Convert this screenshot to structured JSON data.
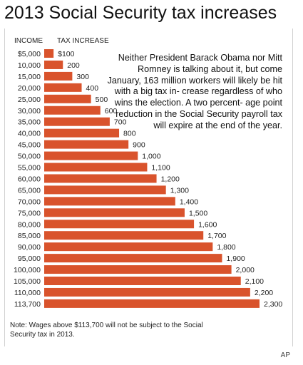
{
  "chart_data": {
    "type": "bar",
    "title": "2013 Social Security tax increases",
    "column_headers": {
      "income": "INCOME",
      "tax_increase": "TAX INCREASE"
    },
    "categories": [
      "$5,000",
      "10,000",
      "15,000",
      "20,000",
      "25,000",
      "30,000",
      "35,000",
      "40,000",
      "45,000",
      "50,000",
      "55,000",
      "60,000",
      "65,000",
      "70,000",
      "75,000",
      "80,000",
      "85,000",
      "90,000",
      "95,000",
      "100,000",
      "105,000",
      "110,000",
      "113,700"
    ],
    "values": [
      100,
      200,
      300,
      400,
      500,
      600,
      700,
      800,
      900,
      1000,
      1100,
      1200,
      1300,
      1400,
      1500,
      1600,
      1700,
      1800,
      1900,
      2000,
      2100,
      2200,
      2300
    ],
    "data_labels": [
      "$100",
      "200",
      "300",
      "400",
      "500",
      "600",
      "700",
      "800",
      "900",
      "1,000",
      "1,100",
      "1,200",
      "1,300",
      "1,400",
      "1,500",
      "1,600",
      "1,700",
      "1,800",
      "1,900",
      "2,000",
      "2,100",
      "2,200",
      "2,300"
    ],
    "orientation": "horizontal",
    "bar_color": "#d9532c",
    "xlim": [
      0,
      2300
    ],
    "grid": false,
    "annotation": "Neither President Barack Obama nor Mitt Romney is talking about it, but come January, 163 million workers will likely be hit with a big tax in- crease regardless of who wins the election. A two percent- age point reduction in the Social Security payroll tax will expire at the end of the year.",
    "note": "Note: Wages above $113,700 will not be subject to the Social Security tax in 2013.",
    "credit": "AP"
  }
}
